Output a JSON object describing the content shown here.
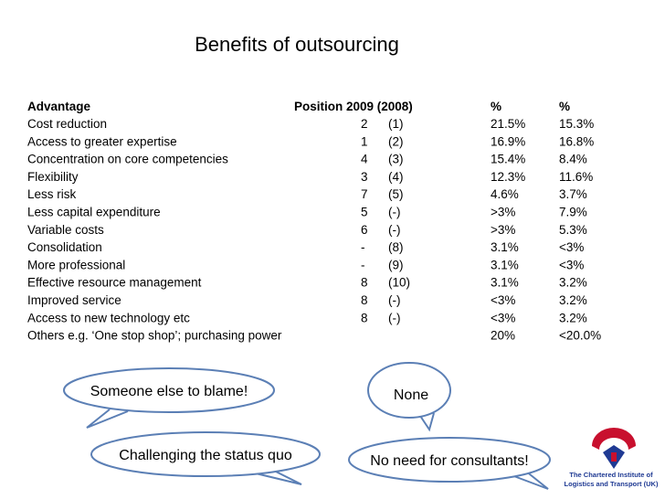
{
  "title": "Benefits of outsourcing",
  "table": {
    "header": {
      "advantage": "Advantage",
      "position": "Position 2009 (2008)",
      "pct_2009": "%",
      "pct_2008": "%"
    },
    "rows": [
      {
        "advantage": "Cost reduction",
        "position_2009": "2",
        "position_2008": "(1)",
        "pct_2009": "21.5%",
        "pct_2008": "15.3%"
      },
      {
        "advantage": "Access to greater expertise",
        "position_2009": "1",
        "position_2008": "(2)",
        "pct_2009": "16.9%",
        "pct_2008": "16.8%"
      },
      {
        "advantage": "Concentration on core competencies",
        "position_2009": "4",
        "position_2008": "(3)",
        "pct_2009": "15.4%",
        "pct_2008": "8.4%"
      },
      {
        "advantage": "Flexibility",
        "position_2009": "3",
        "position_2008": "(4)",
        "pct_2009": "12.3%",
        "pct_2008": "11.6%"
      },
      {
        "advantage": "Less risk",
        "position_2009": "7",
        "position_2008": "(5)",
        "pct_2009": "4.6%",
        "pct_2008": "3.7%"
      },
      {
        "advantage": "Less capital expenditure",
        "position_2009": "5",
        "position_2008": "(-)",
        "pct_2009": ">3%",
        "pct_2008": "7.9%"
      },
      {
        "advantage": "Variable costs",
        "position_2009": "6",
        "position_2008": "(-)",
        "pct_2009": ">3%",
        "pct_2008": "5.3%"
      },
      {
        "advantage": "Consolidation",
        "position_2009": "-",
        "position_2008": "(8)",
        "pct_2009": "3.1%",
        "pct_2008": "<3%"
      },
      {
        "advantage": "More professional",
        "position_2009": "-",
        "position_2008": "(9)",
        "pct_2009": "3.1%",
        "pct_2008": "<3%"
      },
      {
        "advantage": "Effective resource management",
        "position_2009": "8",
        "position_2008": "(10)",
        "pct_2009": "3.1%",
        "pct_2008": "3.2%"
      },
      {
        "advantage": "Improved service",
        "position_2009": "8",
        "position_2008": "(-)",
        "pct_2009": "<3%",
        "pct_2008": "3.2%"
      },
      {
        "advantage": "Access to new technology etc",
        "position_2009": "8",
        "position_2008": "(-)",
        "pct_2009": "<3%",
        "pct_2008": "3.2%"
      },
      {
        "advantage": "Others e.g. ‘One stop shop’; purchasing power",
        "pct_2009": "20%",
        "pct_2008": "<20.0%"
      }
    ]
  },
  "bubbles": [
    "Someone else to blame!",
    "None",
    "Challenging the status quo",
    "No need for consultants!"
  ],
  "logo": {
    "line1": "The Chartered Institute of",
    "line2": "Logistics and Transport (UK)"
  }
}
